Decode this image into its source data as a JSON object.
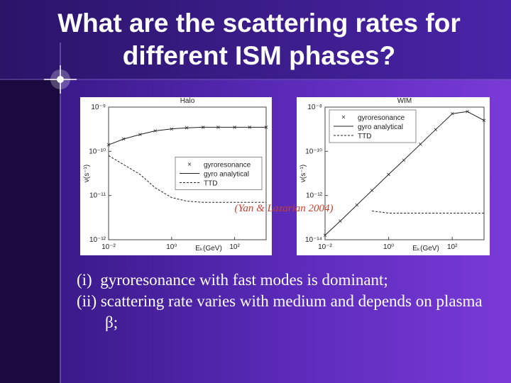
{
  "slide": {
    "title": "What are the scattering rates for different ISM phases?",
    "citation": "(Yan & Lazarian 2004)",
    "bullets": [
      "(i)  gyroresonance with fast modes is dominant;",
      "(ii) scattering rate varies with medium and depends on plasma β;"
    ]
  },
  "chart_data": [
    {
      "type": "line",
      "title": "Halo",
      "xlabel": "Eₖ(GeV)",
      "ylabel": "ν(s⁻¹)",
      "log_x": true,
      "log_y": true,
      "legend": "center right",
      "xlim": [
        0.01,
        1000
      ],
      "ylim": [
        1e-12,
        1e-09
      ],
      "xticks": [
        {
          "value": 0.01,
          "label": "10⁻²"
        },
        {
          "value": 1,
          "label": "10⁰"
        },
        {
          "value": 100,
          "label": "10²"
        }
      ],
      "yticks": [
        {
          "value": 1e-12,
          "label": "10⁻¹²"
        },
        {
          "value": 1e-11,
          "label": "10⁻¹¹"
        },
        {
          "value": 1e-10,
          "label": "10⁻¹⁰"
        },
        {
          "value": 1e-09,
          "label": "10⁻⁹"
        }
      ],
      "x": [
        0.01,
        0.03,
        0.1,
        0.3,
        1,
        3,
        10,
        30,
        100,
        300,
        1000
      ],
      "series": [
        {
          "name": "gyroresonance",
          "style": "markers",
          "color": "#333333",
          "values": [
            1.4e-10,
            1.9e-10,
            2.4e-10,
            2.9e-10,
            3.2e-10,
            3.4e-10,
            3.5e-10,
            3.5e-10,
            3.5e-10,
            3.5e-10,
            3.5e-10
          ]
        },
        {
          "name": "gyro analytical",
          "style": "solid",
          "color": "#222222",
          "values": [
            1.4e-10,
            1.9e-10,
            2.4e-10,
            2.9e-10,
            3.2e-10,
            3.4e-10,
            3.5e-10,
            3.5e-10,
            3.5e-10,
            3.5e-10,
            3.5e-10
          ]
        },
        {
          "name": "TTD",
          "style": "dashed",
          "color": "#222222",
          "values": [
            8e-11,
            5e-11,
            3e-11,
            1.5e-11,
            9e-12,
            7.5e-12,
            7e-12,
            7e-12,
            7e-12,
            7e-12,
            7e-12
          ]
        }
      ]
    },
    {
      "type": "line",
      "title": "WIM",
      "xlabel": "Eₖ(GeV)",
      "ylabel": "ν(s⁻¹)",
      "log_x": true,
      "log_y": true,
      "legend": "upper left",
      "xlim": [
        0.01,
        1000
      ],
      "ylim": [
        1e-14,
        1e-08
      ],
      "xticks": [
        {
          "value": 0.01,
          "label": "10⁻²"
        },
        {
          "value": 1,
          "label": "10⁰"
        },
        {
          "value": 100,
          "label": "10²"
        }
      ],
      "yticks": [
        {
          "value": 1e-14,
          "label": "10⁻¹⁴"
        },
        {
          "value": 1e-12,
          "label": "10⁻¹²"
        },
        {
          "value": 1e-10,
          "label": "10⁻¹⁰"
        },
        {
          "value": 1e-08,
          "label": "10⁻⁸"
        }
      ],
      "x": [
        0.01,
        0.03,
        0.1,
        0.3,
        1,
        3,
        10,
        30,
        100,
        300,
        1000
      ],
      "series": [
        {
          "name": "gyroresonance",
          "style": "markers",
          "color": "#333333",
          "values": [
            1.6e-14,
            7e-14,
            3.7e-13,
            1.7e-12,
            9e-12,
            4e-11,
            2.1e-10,
            9.6e-10,
            5e-09,
            6.3e-09,
            2.5e-09
          ]
        },
        {
          "name": "gyro analytical",
          "style": "solid",
          "color": "#222222",
          "values": [
            1.6e-14,
            7e-14,
            3.7e-13,
            1.7e-12,
            9e-12,
            4e-11,
            2.1e-10,
            9.6e-10,
            5e-09,
            6.3e-09,
            2.5e-09
          ]
        },
        {
          "name": "TTD",
          "style": "dashed",
          "color": "#222222",
          "values": [
            null,
            null,
            null,
            2e-13,
            1.6e-13,
            1.6e-13,
            1.6e-13,
            1.6e-13,
            1.6e-13,
            1.6e-13,
            1.6e-13
          ]
        }
      ]
    }
  ]
}
